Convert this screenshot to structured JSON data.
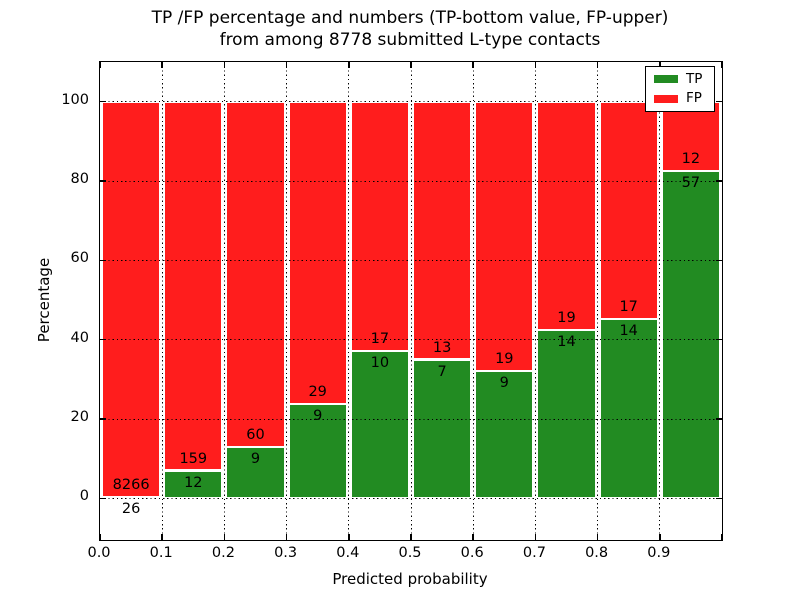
{
  "figure": {
    "title_line1": "TP /FP percentage and numbers (TP-bottom value, FP-upper)",
    "title_line2": "from among 8778 submitted L-type contacts",
    "xlabel": "Predicted probability",
    "ylabel": "Percentage"
  },
  "legend": {
    "items": [
      {
        "label": "TP",
        "color": "#228b22"
      },
      {
        "label": "FP",
        "color": "#ff1d1d"
      }
    ]
  },
  "chart_data": {
    "type": "bar",
    "stacked": true,
    "normalized": "each bar scaled to 100 percent; numbers shown are raw counts (TP bottom value, FP upper)",
    "title": "TP /FP percentage and numbers (TP-bottom value, FP-upper) from among 8778 submitted L-type contacts",
    "xlabel": "Predicted probability",
    "ylabel": "Percentage",
    "xlim": [
      0.0,
      1.0
    ],
    "ylim": [
      -10.5,
      110
    ],
    "grid": "dotted",
    "legend_position": "upper right",
    "bin_edges": [
      0.0,
      0.1,
      0.2,
      0.3,
      0.4,
      0.5,
      0.6,
      0.7,
      0.8,
      0.9,
      1.0
    ],
    "series": [
      {
        "name": "TP",
        "stack": "bottom",
        "color": "#228b22",
        "counts": [
          26,
          12,
          9,
          9,
          10,
          7,
          9,
          14,
          14,
          57
        ]
      },
      {
        "name": "FP",
        "stack": "top",
        "color": "#ff1d1d",
        "counts": [
          8266,
          159,
          60,
          29,
          17,
          13,
          19,
          19,
          17,
          12
        ]
      }
    ],
    "tp_percent_of_bar": [
      0.31,
      7.02,
      13.04,
      23.68,
      37.04,
      35.0,
      32.14,
      42.42,
      45.16,
      82.61
    ],
    "total_contacts": 8778,
    "x_tick_labels": [
      "0.0",
      "0.1",
      "0.2",
      "0.3",
      "0.4",
      "0.5",
      "0.6",
      "0.7",
      "0.8",
      "0.9"
    ],
    "y_ticks": [
      0,
      20,
      40,
      60,
      80,
      100
    ],
    "y_tick_labels": [
      "0",
      "20",
      "40",
      "60",
      "80",
      "100"
    ],
    "bar_edge_color": "#ffffff"
  }
}
